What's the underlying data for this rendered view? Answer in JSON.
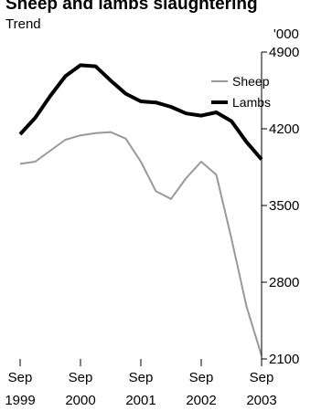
{
  "chart_data": {
    "type": "line",
    "title": "Sheep and lambs slaughtering",
    "subtitle": "Trend",
    "y_unit": "'000",
    "ylim": [
      2100,
      4900
    ],
    "y_ticks": [
      2100,
      2800,
      3500,
      4200,
      4900
    ],
    "x_tick_labels": [
      {
        "month": "Sep",
        "year": "1999"
      },
      {
        "month": "Sep",
        "year": "2000"
      },
      {
        "month": "Sep",
        "year": "2001"
      },
      {
        "month": "Sep",
        "year": "2002"
      },
      {
        "month": "Sep",
        "year": "2003"
      }
    ],
    "legend_placement": "top-right",
    "grid": false,
    "series": [
      {
        "name": "Sheep",
        "color": "#999999",
        "line_width": 2,
        "x": [
          "1999-09",
          "1999-12",
          "2000-03",
          "2000-06",
          "2000-09",
          "2000-12",
          "2001-03",
          "2001-06",
          "2001-09",
          "2001-12",
          "2002-03",
          "2002-06",
          "2002-09",
          "2002-12",
          "2003-03",
          "2003-06",
          "2003-09"
        ],
        "values": [
          3880,
          3900,
          4000,
          4100,
          4140,
          4160,
          4170,
          4110,
          3900,
          3630,
          3560,
          3750,
          3900,
          3780,
          3200,
          2580,
          2130
        ]
      },
      {
        "name": "Lambs",
        "color": "#000000",
        "line_width": 4,
        "x": [
          "1999-09",
          "1999-12",
          "2000-03",
          "2000-06",
          "2000-09",
          "2000-12",
          "2001-03",
          "2001-06",
          "2001-09",
          "2001-12",
          "2002-03",
          "2002-06",
          "2002-09",
          "2002-12",
          "2003-03",
          "2003-06",
          "2003-09"
        ],
        "values": [
          4150,
          4300,
          4500,
          4680,
          4780,
          4770,
          4640,
          4520,
          4450,
          4440,
          4400,
          4340,
          4320,
          4350,
          4270,
          4080,
          3920
        ]
      }
    ]
  }
}
